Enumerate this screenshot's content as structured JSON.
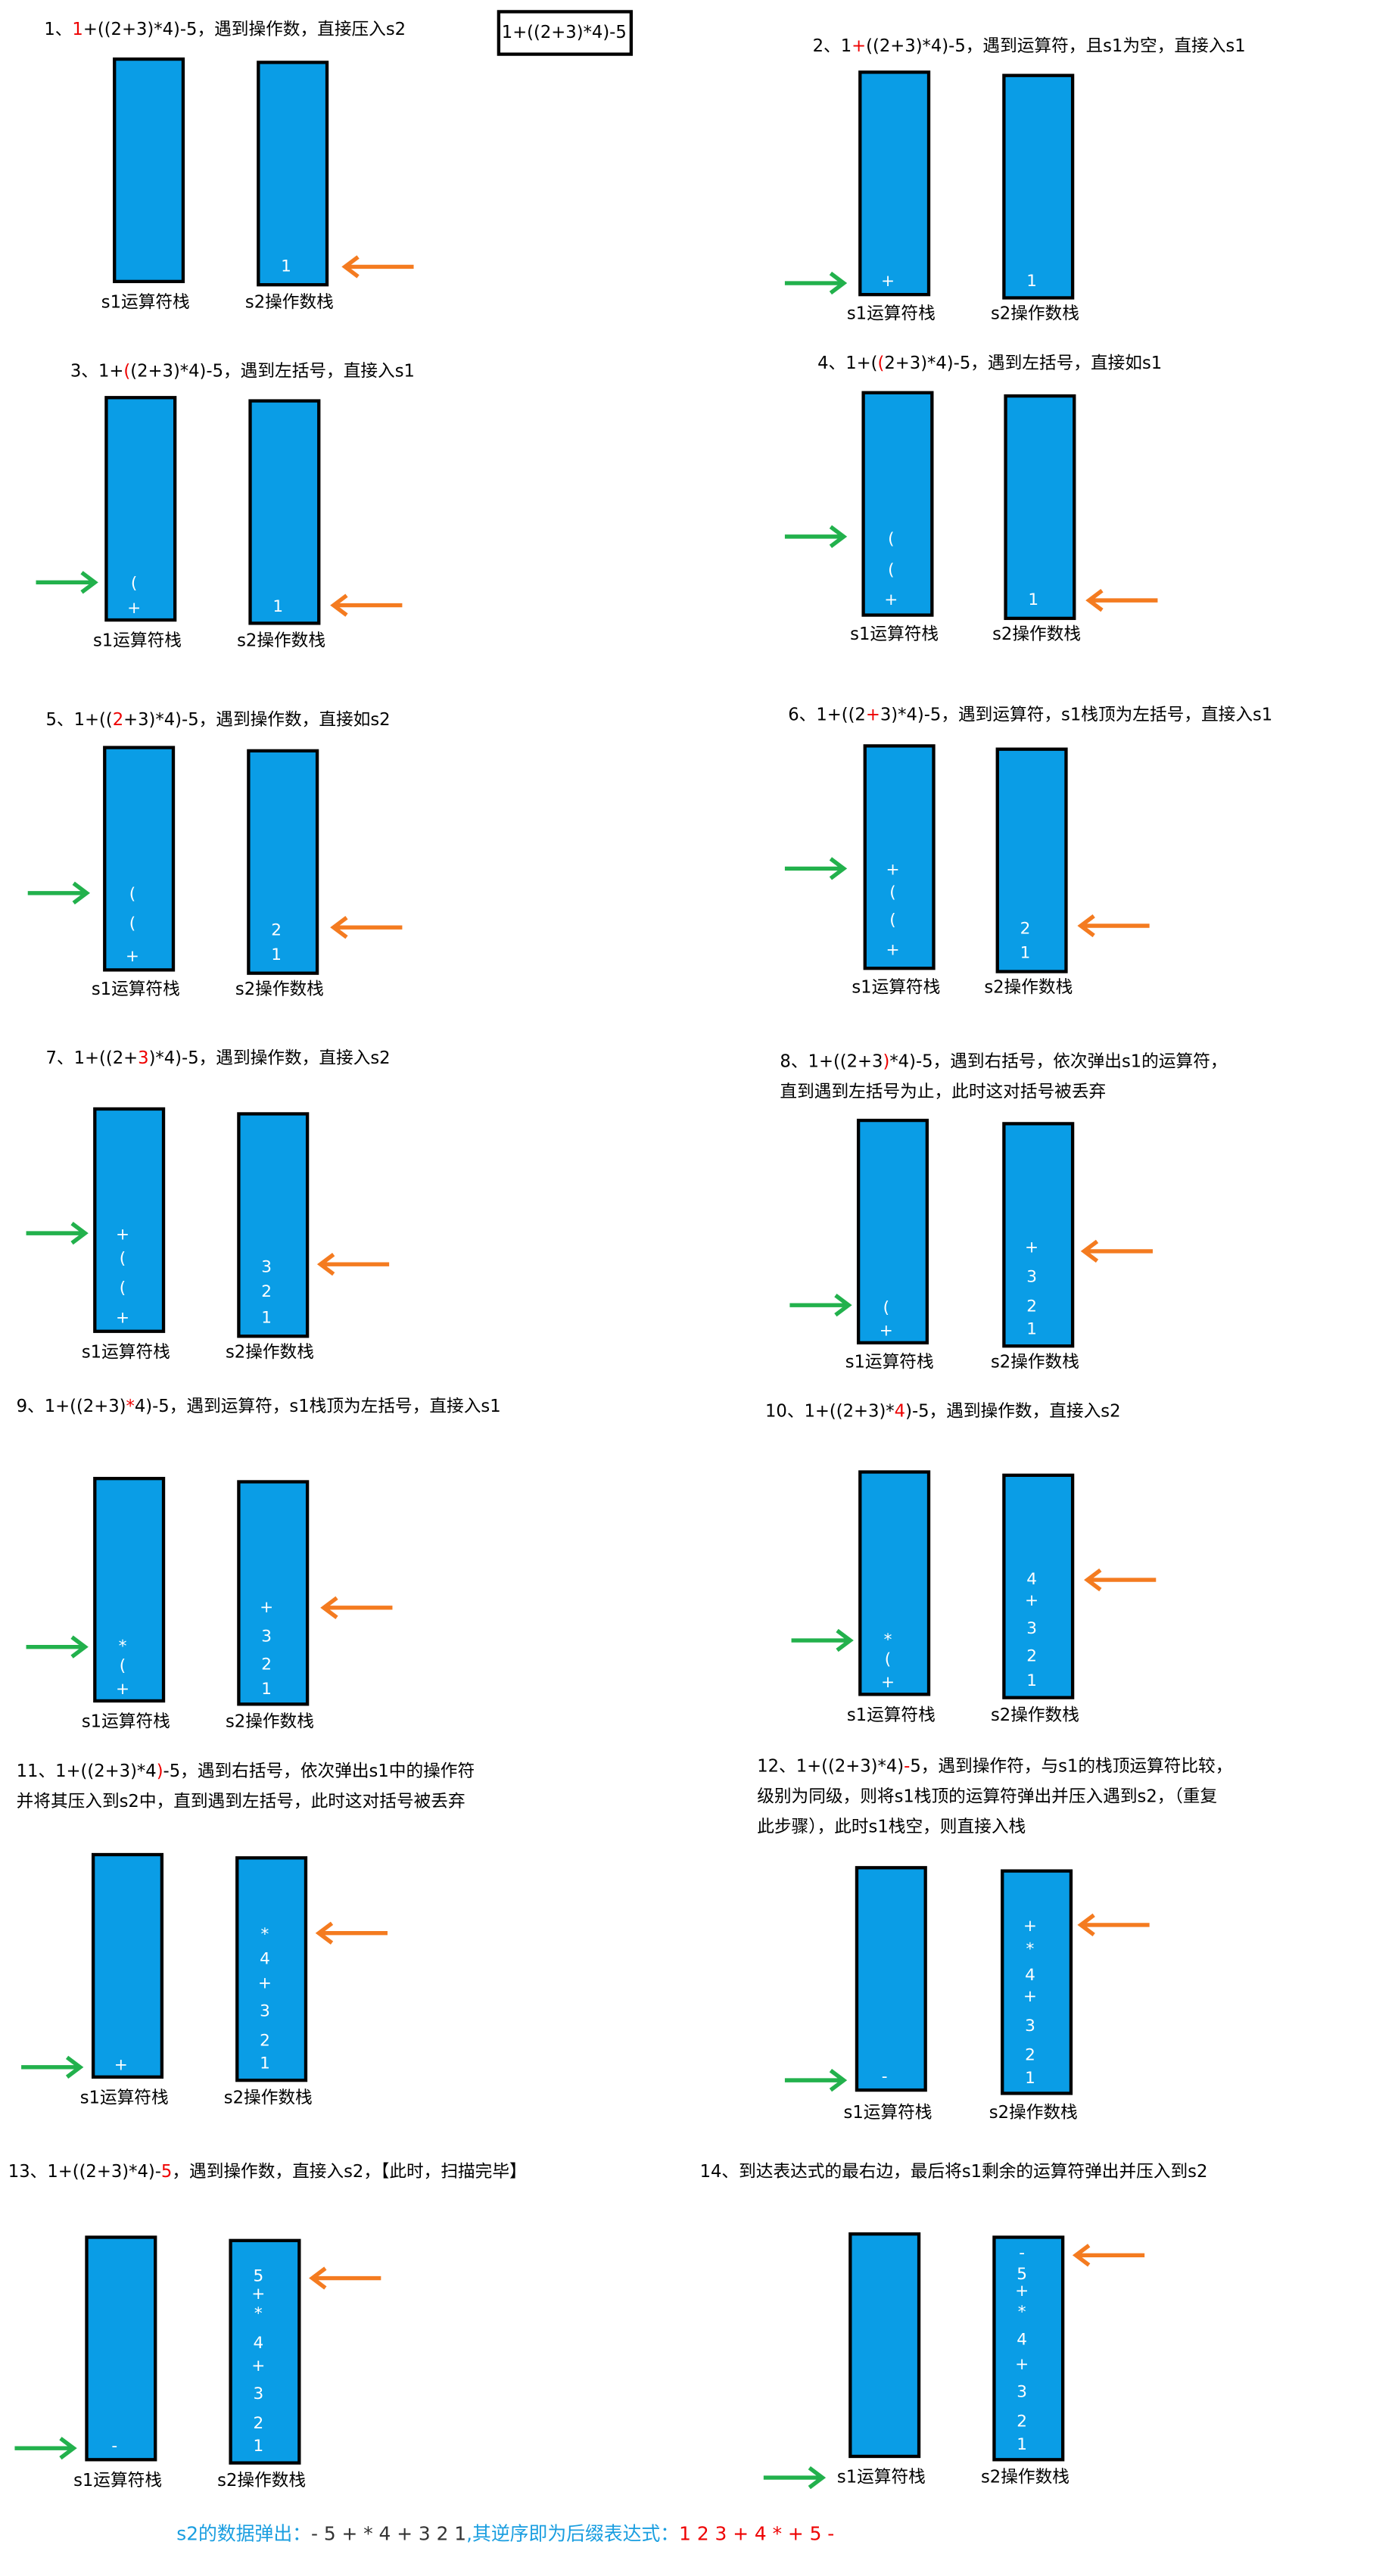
{
  "expression_box": "1+((2+3)*4)-5",
  "steps": [
    {
      "caption": [
        [
          {
            "text": "1、",
            "color": "#000"
          },
          {
            "text": "1",
            "color": "#e00"
          },
          {
            "text": "+((2+3)*4)-5，遇到操作数，直接压入s2",
            "color": "#000"
          }
        ]
      ],
      "s1": [],
      "s2": [
        "1"
      ],
      "s1_label": "s1运算符栈",
      "s2_label": "s2操作数栈"
    },
    {
      "caption": [
        [
          {
            "text": "2、1",
            "color": "#000"
          },
          {
            "text": "+",
            "color": "#e00"
          },
          {
            "text": "((2+3)*4)-5，遇到运算符，且s1为空，直接入s1",
            "color": "#000"
          }
        ]
      ],
      "s1": [
        "+"
      ],
      "s2": [
        "1"
      ],
      "s1_label": "s1运算符栈",
      "s2_label": "s2操作数栈"
    },
    {
      "caption": [
        [
          {
            "text": "3、1+",
            "color": "#000"
          },
          {
            "text": "(",
            "color": "#e00"
          },
          {
            "text": "(2+3)*4)-5，遇到左括号，直接入s1",
            "color": "#000"
          }
        ]
      ],
      "s1": [
        "+",
        "("
      ],
      "s2": [
        "1"
      ],
      "s1_label": "s1运算符栈",
      "s2_label": "s2操作数栈"
    },
    {
      "caption": [
        [
          {
            "text": "4、1+(",
            "color": "#000"
          },
          {
            "text": "(",
            "color": "#e00"
          },
          {
            "text": "2+3)*4)-5，遇到左括号，直接如s1",
            "color": "#000"
          }
        ]
      ],
      "s1": [
        "+",
        "(",
        "("
      ],
      "s2": [
        "1"
      ],
      "s1_label": "s1运算符栈",
      "s2_label": "s2操作数栈"
    },
    {
      "caption": [
        [
          {
            "text": "5、1+((",
            "color": "#000"
          },
          {
            "text": "2",
            "color": "#e00"
          },
          {
            "text": "+3)*4)-5，遇到操作数，直接如s2",
            "color": "#000"
          }
        ]
      ],
      "s1": [
        "+",
        "(",
        "("
      ],
      "s2": [
        "1",
        "2"
      ],
      "s1_label": "s1运算符栈",
      "s2_label": "s2操作数栈"
    },
    {
      "caption": [
        [
          {
            "text": "6、1+((2",
            "color": "#000"
          },
          {
            "text": "+",
            "color": "#e00"
          },
          {
            "text": "3)*4)-5，遇到运算符，s1栈顶为左括号，直接入s1",
            "color": "#000"
          }
        ]
      ],
      "s1": [
        "+",
        "(",
        "(",
        "+"
      ],
      "s2": [
        "1",
        "2"
      ],
      "s1_label": "s1运算符栈",
      "s2_label": "s2操作数栈"
    },
    {
      "caption": [
        [
          {
            "text": "7、1+((2+",
            "color": "#000"
          },
          {
            "text": "3",
            "color": "#e00"
          },
          {
            "text": ")*4)-5，遇到操作数，直接入s2",
            "color": "#000"
          }
        ]
      ],
      "s1": [
        "+",
        "(",
        "(",
        "+"
      ],
      "s2": [
        "1",
        "2",
        "3"
      ],
      "s1_label": "s1运算符栈",
      "s2_label": "s2操作数栈"
    },
    {
      "caption": [
        [
          {
            "text": "8、1+((2+3",
            "color": "#000"
          },
          {
            "text": ")",
            "color": "#e00"
          },
          {
            "text": "*4)-5，遇到右括号，依次弹出s1的运算符，",
            "color": "#000"
          }
        ],
        [
          {
            "text": "直到遇到左括号为止，此时这对括号被丢弃",
            "color": "#000"
          }
        ]
      ],
      "s1": [
        "+",
        "("
      ],
      "s2": [
        "1",
        "2",
        "3",
        "+"
      ],
      "s1_label": "s1运算符栈",
      "s2_label": "s2操作数栈"
    },
    {
      "caption": [
        [
          {
            "text": "9、1+((2+3)",
            "color": "#000"
          },
          {
            "text": "*",
            "color": "#e00"
          },
          {
            "text": "4)-5，遇到运算符，s1栈顶为左括号，直接入s1",
            "color": "#000"
          }
        ]
      ],
      "s1": [
        "+",
        "(",
        "*"
      ],
      "s2": [
        "1",
        "2",
        "3",
        "+"
      ],
      "s1_label": "s1运算符栈",
      "s2_label": "s2操作数栈"
    },
    {
      "caption": [
        [
          {
            "text": "10、1+((2+3)*",
            "color": "#000"
          },
          {
            "text": "4",
            "color": "#e00"
          },
          {
            "text": ")-5，遇到操作数，直接入s2",
            "color": "#000"
          }
        ]
      ],
      "s1": [
        "+",
        "(",
        "*"
      ],
      "s2": [
        "1",
        "2",
        "3",
        "+",
        "4"
      ],
      "s1_label": "s1运算符栈",
      "s2_label": "s2操作数栈"
    },
    {
      "caption": [
        [
          {
            "text": "11、1+((2+3)*4",
            "color": "#000"
          },
          {
            "text": ")",
            "color": "#e00"
          },
          {
            "text": "-5，遇到右括号，依次弹出s1中的操作符",
            "color": "#000"
          }
        ],
        [
          {
            "text": "并将其压入到s2中，直到遇到左括号，此时这对括号被丢弃",
            "color": "#000"
          }
        ]
      ],
      "s1": [
        "+"
      ],
      "s2": [
        "1",
        "2",
        "3",
        "+",
        "4",
        "*"
      ],
      "s1_label": "s1运算符栈",
      "s2_label": "s2操作数栈"
    },
    {
      "caption": [
        [
          {
            "text": "12、1+((2+3)*4)",
            "color": "#000"
          },
          {
            "text": "-",
            "color": "#e00"
          },
          {
            "text": "5，遇到操作符，与s1的栈顶运算符比较，",
            "color": "#000"
          }
        ],
        [
          {
            "text": "级别为同级，则将s1栈顶的运算符弹出并压入遇到s2，（重复",
            "color": "#000"
          }
        ],
        [
          {
            "text": "此步骤），此时s1栈空，则直接入栈",
            "color": "#000"
          }
        ]
      ],
      "s1": [
        "-"
      ],
      "s2": [
        "1",
        "2",
        "3",
        "+",
        "4",
        "*",
        "+"
      ],
      "s1_label": "s1运算符栈",
      "s2_label": "s2操作数栈"
    },
    {
      "caption": [
        [
          {
            "text": "13、1+((2+3)*4)-",
            "color": "#000"
          },
          {
            "text": "5",
            "color": "#e00"
          },
          {
            "text": "，遇到操作数，直接入s2，【此时，扫描完毕】",
            "color": "#000"
          }
        ]
      ],
      "s1": [
        "-"
      ],
      "s2": [
        "1",
        "2",
        "3",
        "+",
        "4",
        "*",
        "+",
        "5"
      ],
      "s1_label": "s1运算符栈",
      "s2_label": "s2操作数栈"
    },
    {
      "caption": [
        [
          {
            "text": "14、到达表达式的最右边，最后将s1剩余的运算符弹出并压入到s2",
            "color": "#000"
          }
        ]
      ],
      "s1": [],
      "s2": [
        "1",
        "2",
        "3",
        "+",
        "4",
        "*",
        "+",
        "5",
        "-"
      ],
      "s1_label": "s1运算符栈",
      "s2_label": "s2操作数栈"
    }
  ],
  "footer": [
    {
      "text": "s2的数据弹出：",
      "color": "#1a9ee0"
    },
    {
      "text": "- 5 + * 4 + 3 2 1",
      "color": "#333"
    },
    {
      "text": ",其逆序即为后缀表达式：",
      "color": "#1a9ee0"
    },
    {
      "text": "1 2 3 + 4 * + 5 -",
      "color": "#e00"
    }
  ]
}
